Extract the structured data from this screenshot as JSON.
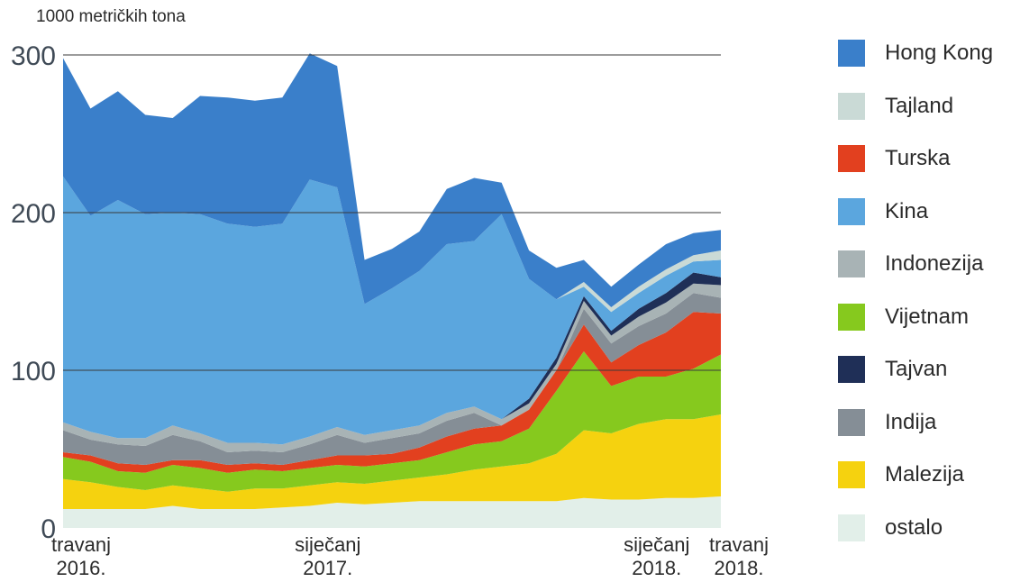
{
  "chart_data": {
    "type": "area",
    "stacked": true,
    "title": "",
    "ylabel": "1000 metričkih tona",
    "xlabel": "",
    "ylim": [
      0,
      300
    ],
    "yticks": [
      0,
      100,
      200,
      300
    ],
    "grid": true,
    "legend_position": "right",
    "x": [
      "2016-04",
      "2016-05",
      "2016-06",
      "2016-07",
      "2016-08",
      "2016-09",
      "2016-10",
      "2016-11",
      "2016-12",
      "2017-01",
      "2017-02",
      "2017-03",
      "2017-04",
      "2017-05",
      "2017-06",
      "2017-07",
      "2017-08",
      "2017-09",
      "2017-10",
      "2017-11",
      "2017-12",
      "2018-01",
      "2018-02",
      "2018-03",
      "2018-04"
    ],
    "x_tick_labels": [
      {
        "x": "2016-04",
        "line1": "travanj",
        "line2": "2016."
      },
      {
        "x": "2017-01",
        "line1": "siječanj",
        "line2": "2017."
      },
      {
        "x": "2018-01",
        "line1": "siječanj",
        "line2": "2018."
      },
      {
        "x": "2018-04",
        "line1": "travanj",
        "line2": "2018."
      }
    ],
    "series": [
      {
        "name": "ostalo",
        "color": "#e2efe9",
        "values": [
          12,
          12,
          12,
          12,
          14,
          12,
          12,
          12,
          13,
          14,
          16,
          15,
          16,
          17,
          17,
          17,
          17,
          17,
          17,
          19,
          18,
          18,
          19,
          19,
          20
        ]
      },
      {
        "name": "Malezija",
        "color": "#f5d20f",
        "values": [
          19,
          17,
          14,
          12,
          13,
          13,
          11,
          13,
          12,
          13,
          13,
          13,
          14,
          15,
          17,
          20,
          22,
          24,
          30,
          43,
          42,
          48,
          50,
          50,
          52
        ]
      },
      {
        "name": "Vijetnam",
        "color": "#86c91e",
        "values": [
          14,
          13,
          10,
          11,
          13,
          13,
          12,
          12,
          11,
          11,
          11,
          11,
          11,
          11,
          14,
          16,
          16,
          22,
          40,
          50,
          30,
          30,
          27,
          32,
          38
        ]
      },
      {
        "name": "Turska",
        "color": "#e2401f",
        "values": [
          3,
          4,
          5,
          5,
          3,
          5,
          5,
          4,
          4,
          5,
          6,
          7,
          6,
          8,
          10,
          10,
          10,
          12,
          13,
          17,
          15,
          20,
          28,
          36,
          26
        ]
      },
      {
        "name": "Indija",
        "color": "#858e96",
        "values": [
          14,
          10,
          12,
          12,
          16,
          12,
          8,
          8,
          8,
          10,
          13,
          8,
          10,
          9,
          10,
          10,
          0,
          0,
          0,
          10,
          12,
          12,
          12,
          12,
          10
        ]
      },
      {
        "name": "Indonezija",
        "color": "#a8b3b5",
        "values": [
          5,
          5,
          4,
          5,
          6,
          5,
          6,
          5,
          5,
          5,
          5,
          5,
          5,
          5,
          5,
          4,
          4,
          4,
          4,
          5,
          5,
          6,
          7,
          6,
          8
        ]
      },
      {
        "name": "Tajvan",
        "color": "#1f2f57",
        "values": [
          0,
          0,
          0,
          0,
          0,
          0,
          0,
          0,
          0,
          0,
          0,
          0,
          0,
          0,
          0,
          0,
          0,
          3,
          4,
          3,
          3,
          5,
          6,
          7,
          5
        ]
      },
      {
        "name": "Kina",
        "color": "#5ba6de",
        "values": [
          156,
          137,
          151,
          142,
          135,
          139,
          139,
          137,
          140,
          163,
          152,
          83,
          90,
          98,
          107,
          105,
          130,
          76,
          37,
          6,
          12,
          10,
          11,
          7,
          11
        ]
      },
      {
        "name": "Tajland",
        "color": "#cadad6",
        "values": [
          0,
          0,
          0,
          0,
          0,
          0,
          0,
          0,
          0,
          0,
          0,
          0,
          0,
          0,
          0,
          0,
          0,
          0,
          0,
          3,
          3,
          4,
          4,
          4,
          6
        ]
      },
      {
        "name": "Hong Kong",
        "color": "#3a7fca",
        "values": [
          75,
          68,
          69,
          63,
          60,
          75,
          80,
          80,
          80,
          80,
          77,
          28,
          25,
          25,
          35,
          40,
          20,
          18,
          20,
          14,
          13,
          14,
          16,
          14,
          13
        ]
      }
    ],
    "legend_order": [
      "Hong Kong",
      "Tajland",
      "Turska",
      "Kina",
      "Indonezija",
      "Vijetnam",
      "Tajvan",
      "Indija",
      "Malezija",
      "ostalo"
    ]
  }
}
